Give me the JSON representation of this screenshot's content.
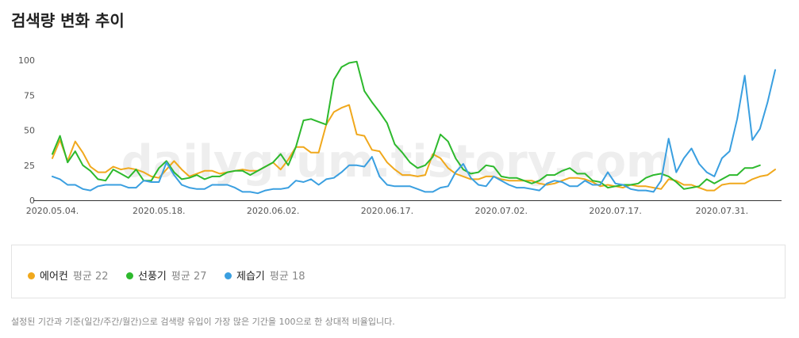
{
  "title": "검색량 변화 추이",
  "watermark": "dailygrum.tistory.com",
  "legend": [
    {
      "name": "에어컨",
      "avg_label": "평균 22",
      "color": "#f0a81c"
    },
    {
      "name": "선풍기",
      "avg_label": "평균 27",
      "color": "#2db92d"
    },
    {
      "name": "제습기",
      "avg_label": "평균 18",
      "color": "#3a9fe0"
    }
  ],
  "note": "설정된 기간과 기준(일간/주간/월간)으로 검색량 유입이 가장 많은 기간을 100으로 한 상대적 비율입니다.",
  "chart_data": {
    "type": "line",
    "title": "",
    "xlabel": "",
    "ylabel": "",
    "ylim": [
      0,
      100
    ],
    "yticks": [
      0,
      25,
      50,
      75,
      100
    ],
    "grid": false,
    "x_start": "2020-05-04",
    "x_tick_labels": [
      "2020.05.04.",
      "2020.05.18.",
      "2020.06.02.",
      "2020.06.17.",
      "2020.07.02.",
      "2020.07.17.",
      "2020.07.31."
    ],
    "x_tick_index": [
      0,
      14,
      29,
      44,
      59,
      74,
      88
    ],
    "series": [
      {
        "name": "에어컨",
        "color": "#f0a81c",
        "values": [
          30,
          43,
          28,
          42,
          34,
          24,
          20,
          20,
          24,
          22,
          23,
          22,
          20,
          17,
          16,
          22,
          28,
          22,
          17,
          19,
          21,
          21,
          19,
          20,
          21,
          22,
          21,
          21,
          24,
          27,
          22,
          29,
          38,
          38,
          34,
          34,
          54,
          63,
          66,
          68,
          47,
          46,
          36,
          35,
          27,
          22,
          18,
          18,
          17,
          18,
          33,
          30,
          23,
          19,
          17,
          15,
          15,
          17,
          17,
          15,
          14,
          14,
          14,
          14,
          12,
          11,
          12,
          14,
          16,
          16,
          15,
          13,
          10,
          11,
          10,
          9,
          11,
          10,
          10,
          9,
          8,
          15,
          14,
          11,
          11,
          9,
          7,
          7,
          11,
          12,
          12,
          12,
          15,
          17,
          18,
          22
        ]
      },
      {
        "name": "선풍기",
        "color": "#2db92d",
        "values": [
          33,
          46,
          27,
          35,
          25,
          21,
          15,
          14,
          22,
          19,
          16,
          22,
          14,
          14,
          23,
          28,
          20,
          15,
          16,
          18,
          15,
          17,
          17,
          20,
          21,
          21,
          18,
          21,
          24,
          27,
          33,
          25,
          38,
          57,
          58,
          56,
          54,
          86,
          95,
          98,
          99,
          78,
          70,
          63,
          55,
          40,
          34,
          27,
          23,
          25,
          31,
          47,
          42,
          30,
          22,
          19,
          20,
          25,
          24,
          17,
          16,
          16,
          14,
          12,
          14,
          18,
          18,
          21,
          23,
          19,
          19,
          14,
          13,
          9,
          10,
          11,
          11,
          12,
          16,
          18,
          19,
          17,
          13,
          8,
          9,
          10,
          15,
          12,
          15,
          18,
          18,
          23,
          23,
          25
        ]
      },
      {
        "name": "제습기",
        "color": "#3a9fe0",
        "values": [
          17,
          15,
          11,
          11,
          8,
          7,
          10,
          11,
          11,
          11,
          9,
          9,
          14,
          13,
          13,
          27,
          18,
          11,
          9,
          8,
          8,
          11,
          11,
          11,
          9,
          6,
          6,
          5,
          7,
          8,
          8,
          9,
          14,
          13,
          15,
          11,
          15,
          16,
          20,
          25,
          25,
          24,
          31,
          17,
          11,
          10,
          10,
          10,
          8,
          6,
          6,
          9,
          10,
          20,
          26,
          16,
          11,
          10,
          17,
          14,
          11,
          9,
          9,
          8,
          7,
          12,
          14,
          13,
          10,
          10,
          14,
          11,
          11,
          20,
          12,
          11,
          8,
          7,
          7,
          6,
          14,
          44,
          20,
          30,
          37,
          26,
          20,
          17,
          30,
          35,
          58,
          89,
          43,
          51,
          70,
          93
        ]
      }
    ]
  }
}
